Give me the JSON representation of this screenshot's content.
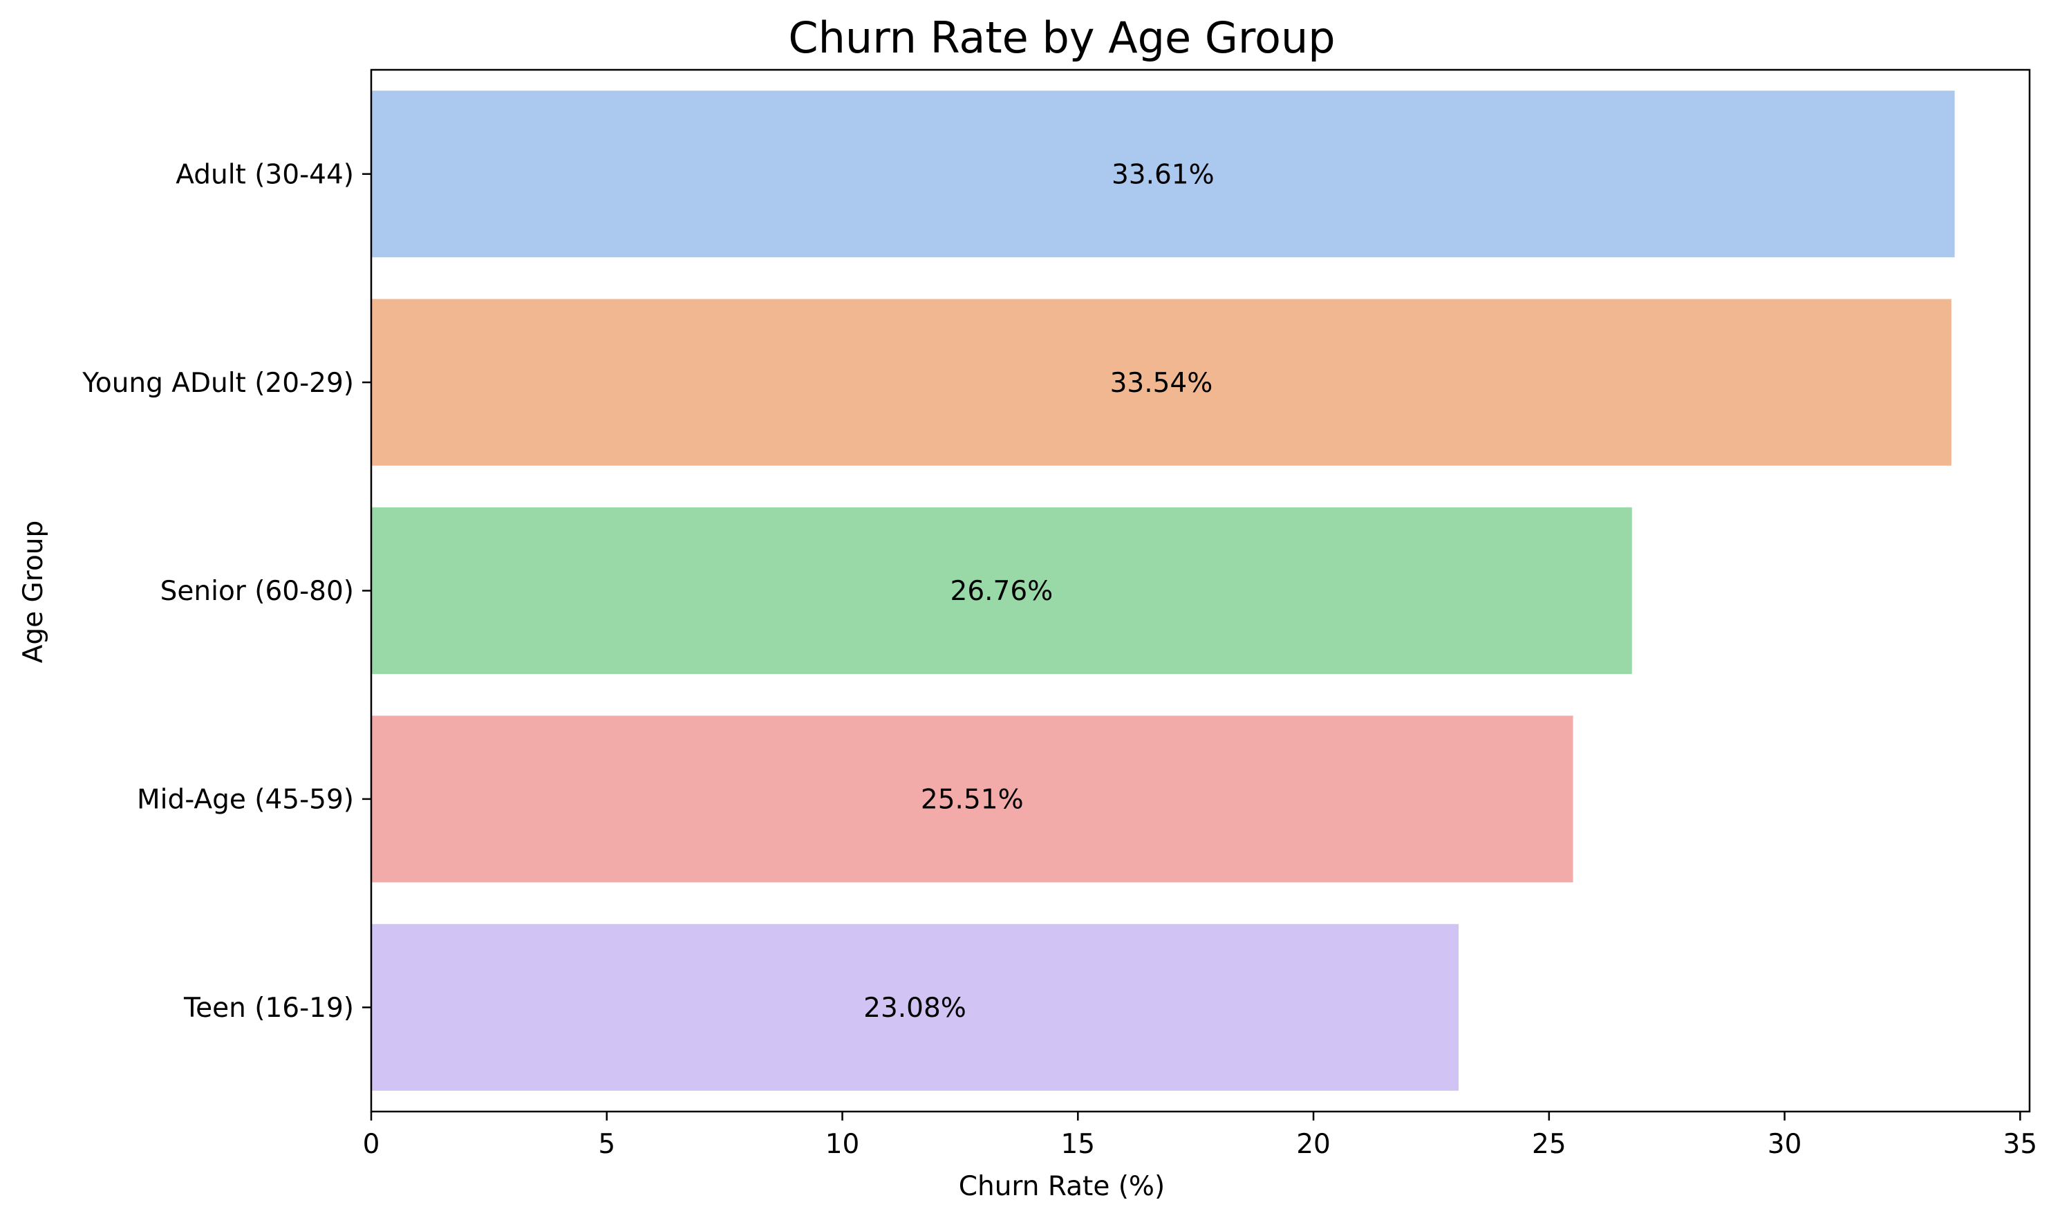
{
  "chart_data": {
    "type": "bar",
    "orientation": "horizontal",
    "title": "Churn Rate by Age Group",
    "xlabel": "Churn Rate (%)",
    "ylabel": "Age Group",
    "xlim": [
      0,
      35.2
    ],
    "x_ticks": [
      0,
      5,
      10,
      15,
      20,
      25,
      30,
      35
    ],
    "grid": false,
    "legend": "none",
    "categories": [
      "Adult (30-44)",
      "Young ADult (20-29)",
      "Senior (60-80)",
      "Mid-Age (45-59)",
      "Teen (16-19)"
    ],
    "values": [
      33.61,
      33.54,
      26.76,
      25.51,
      23.08
    ],
    "data_labels": [
      "33.61%",
      "33.54%",
      "26.76%",
      "25.51%",
      "23.08%"
    ],
    "colors": [
      "#abc9ee",
      "#f1b791",
      "#99d9a7",
      "#f2aba9",
      "#d1c4f5"
    ]
  }
}
